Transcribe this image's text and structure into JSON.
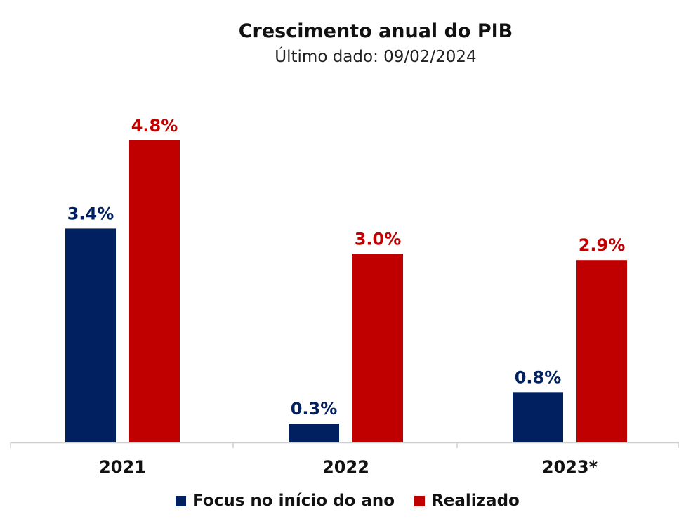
{
  "chart_data": {
    "type": "bar",
    "title": "Crescimento anual do PIB",
    "subtitle": "Último dado: 09/02/2024",
    "categories": [
      "2021",
      "2022",
      "2023*"
    ],
    "series": [
      {
        "name": "Focus no início do ano",
        "values": [
          3.4,
          0.3,
          0.8
        ],
        "labels": [
          "3.4%",
          "0.3%",
          "0.8%"
        ],
        "color": "#002060"
      },
      {
        "name": "Realizado",
        "values": [
          4.8,
          3.0,
          2.9
        ],
        "labels": [
          "4.8%",
          "3.0%",
          "2.9%"
        ],
        "color": "#C00000"
      }
    ],
    "ylim": [
      0,
      4.8
    ],
    "grid": false,
    "legend": "bottom"
  }
}
